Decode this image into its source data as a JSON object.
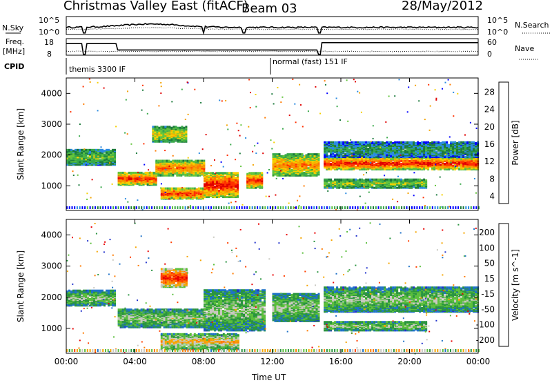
{
  "header": {
    "title": "Christmas Valley East (fitACF)",
    "beam": "Beam 03",
    "date": "28/May/2012"
  },
  "top_strip": {
    "nsky_label": "N.Sky",
    "nsky_ticks": [
      "10^5",
      "10^0"
    ],
    "nsearch_label": "N.Search",
    "nsearch_ticks": [
      "10^5",
      "10^0"
    ],
    "freq_label": "Freq.",
    "freq_unit": "[MHz]",
    "freq_ticks": [
      "18",
      "8"
    ],
    "nave_label": "Nave",
    "nave_ticks": [
      "60",
      "0"
    ],
    "cpid_label": "CPID",
    "cpid_annotations": [
      "themis 3300 IF",
      "normal (fast) 151 IF"
    ]
  },
  "chart_data": [
    {
      "type": "heatmap",
      "panel": "power",
      "ylabel": "Slant Range [km]",
      "xlabel": "",
      "ylim": [
        200,
        4500
      ],
      "y_ticks": [
        "4000",
        "3000",
        "2000",
        "1000"
      ],
      "x_ticks": [
        "00:00",
        "04:00",
        "08:00",
        "12:00",
        "16:00",
        "20:00",
        "00:00"
      ],
      "colorbar": {
        "label": "Power [dB]",
        "ticks": [
          "28",
          "24",
          "20",
          "16",
          "12",
          "8",
          "4"
        ],
        "colors": [
          "#0000ff",
          "#2a8ae0",
          "#1c7a3c",
          "#39a94a",
          "#62c43c",
          "#f5d000",
          "#f4a300",
          "#ff7b00",
          "#ff3000",
          "#e00000"
        ]
      },
      "bands": [
        {
          "t_start": 0.0,
          "t_end": 2.8,
          "r_min": 1650,
          "r_max": 2150,
          "level": 0.45
        },
        {
          "t_start": 3.0,
          "t_end": 5.2,
          "r_min": 1000,
          "r_max": 1400,
          "level": 0.9
        },
        {
          "t_start": 5.2,
          "t_end": 8.0,
          "r_min": 1300,
          "r_max": 1800,
          "level": 0.8
        },
        {
          "t_start": 5.0,
          "t_end": 7.0,
          "r_min": 2400,
          "r_max": 2900,
          "level": 0.6
        },
        {
          "t_start": 5.5,
          "t_end": 8.0,
          "r_min": 550,
          "r_max": 900,
          "level": 0.9
        },
        {
          "t_start": 8.0,
          "t_end": 10.0,
          "r_min": 600,
          "r_max": 1400,
          "level": 0.95
        },
        {
          "t_start": 10.5,
          "t_end": 11.4,
          "r_min": 900,
          "r_max": 1400,
          "level": 0.9
        },
        {
          "t_start": 12.0,
          "t_end": 14.7,
          "r_min": 1300,
          "r_max": 2000,
          "level": 0.75
        },
        {
          "t_start": 15.0,
          "t_end": 24.0,
          "r_min": 1500,
          "r_max": 1900,
          "level": 0.95
        },
        {
          "t_start": 15.0,
          "t_end": 24.0,
          "r_min": 1900,
          "r_max": 2400,
          "level": 0.3
        },
        {
          "t_start": 15.0,
          "t_end": 21.0,
          "r_min": 900,
          "r_max": 1200,
          "level": 0.5
        }
      ]
    },
    {
      "type": "heatmap",
      "panel": "velocity",
      "ylabel": "Slant Range [km]",
      "xlabel": "Time UT",
      "ylim": [
        200,
        4500
      ],
      "y_ticks": [
        "4000",
        "3000",
        "2000",
        "1000"
      ],
      "x_ticks": [
        "00:00",
        "04:00",
        "08:00",
        "12:00",
        "16:00",
        "20:00",
        "00:00"
      ],
      "colorbar": {
        "label": "Velocity [m s^-1]",
        "ticks": [
          "200",
          "100",
          "50",
          "15",
          "-15",
          "-50",
          "-100",
          "-200"
        ],
        "colors": [
          "#2233cc",
          "#1f72c8",
          "#2a9440",
          "#5bbf3c",
          "#c8c8c0",
          "#f5a500",
          "#ff7b00",
          "#ff4000",
          "#e80000"
        ]
      },
      "bands": [
        {
          "t_start": 0.0,
          "t_end": 2.8,
          "r_min": 1700,
          "r_max": 2200,
          "level": 0.45
        },
        {
          "t_start": 3.0,
          "t_end": 8.0,
          "r_min": 1000,
          "r_max": 1600,
          "level": 0.45
        },
        {
          "t_start": 5.5,
          "t_end": 7.0,
          "r_min": 2300,
          "r_max": 2900,
          "level": 0.95
        },
        {
          "t_start": 5.5,
          "t_end": 10.0,
          "r_min": 300,
          "r_max": 800,
          "level": 0.62
        },
        {
          "t_start": 8.0,
          "t_end": 11.5,
          "r_min": 900,
          "r_max": 2200,
          "level": 0.45
        },
        {
          "t_start": 12.0,
          "t_end": 14.7,
          "r_min": 1200,
          "r_max": 2100,
          "level": 0.45
        },
        {
          "t_start": 15.0,
          "t_end": 24.0,
          "r_min": 1500,
          "r_max": 2300,
          "level": 0.45
        },
        {
          "t_start": 15.0,
          "t_end": 21.0,
          "r_min": 900,
          "r_max": 1200,
          "level": 0.45
        }
      ]
    }
  ]
}
